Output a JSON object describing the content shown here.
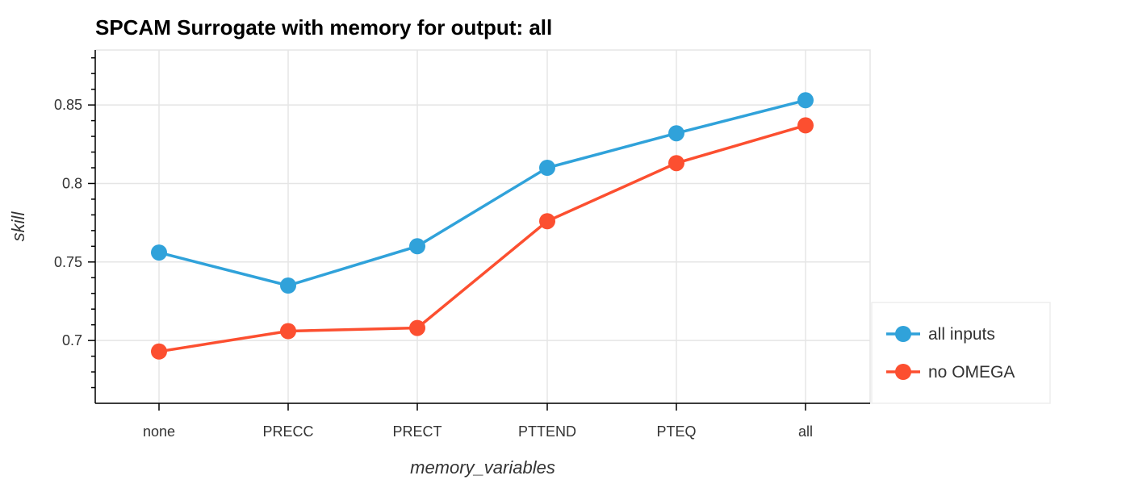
{
  "chart_data": {
    "type": "line",
    "title": "SPCAM Surrogate with memory for output: all",
    "xlabel": "memory_variables",
    "ylabel": "skill",
    "categories": [
      "none",
      "PRECC",
      "PRECT",
      "PTTEND",
      "PTEQ",
      "all"
    ],
    "ylim": [
      0.66,
      0.885
    ],
    "yticks": [
      0.7,
      0.75,
      0.8,
      0.85
    ],
    "ytick_labels": [
      "0.7",
      "0.75",
      "0.8",
      "0.85"
    ],
    "grid": true,
    "legend_position": "right",
    "series": [
      {
        "name": "all inputs",
        "color": "#30a2da",
        "values": [
          0.756,
          0.735,
          0.76,
          0.81,
          0.832,
          0.853
        ]
      },
      {
        "name": "no OMEGA",
        "color": "#fc4f30",
        "values": [
          0.693,
          0.706,
          0.708,
          0.776,
          0.813,
          0.837
        ]
      }
    ]
  }
}
